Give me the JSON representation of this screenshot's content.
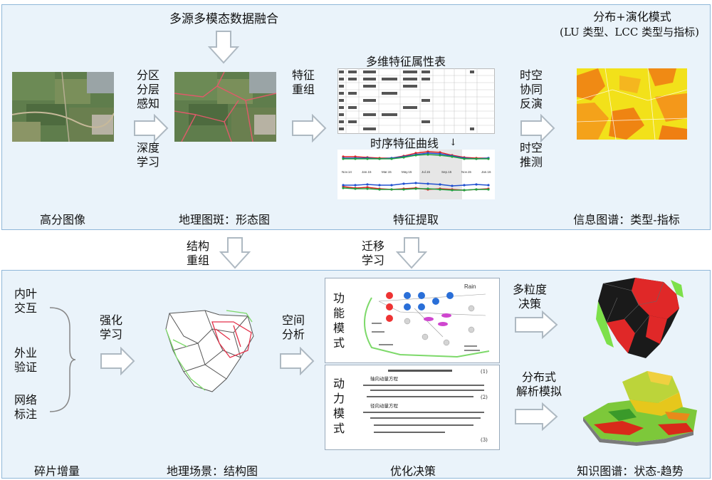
{
  "top": {
    "fusion_title": "多源多模态数据融合",
    "attr_table_title": "多维特征属性表",
    "curve_title": "时序特征曲线",
    "arrow1_upper": [
      "分区",
      "分层",
      "感知"
    ],
    "arrow1_lower": [
      "深度",
      "学习"
    ],
    "arrow2": [
      "特征",
      "重组"
    ],
    "arrow3_upper": [
      "时空",
      "协同",
      "反演"
    ],
    "arrow3_lower": [
      "时空",
      "推测"
    ],
    "right_title_line1": "分布+演化模式",
    "right_title_line2": "(LU 类型、LCC 类型与指标)",
    "captions": [
      "高分图像",
      "地理图斑：形态图",
      "特征提取",
      "信息图谱：类型-指标"
    ],
    "chart_x_labels": [
      "Nov.14",
      "Jan.15",
      "Mar.15",
      "May.15",
      "Jul.15",
      "Sep.15",
      "Nov.15",
      "Jan.16"
    ]
  },
  "middle": {
    "left_arrow": [
      "结构",
      "重组"
    ],
    "right_arrow": [
      "迁移",
      "学习"
    ]
  },
  "bottom": {
    "left_list": [
      [
        "内叶",
        "交互"
      ],
      [
        "外业",
        "验证"
      ],
      [
        "网络",
        "标注"
      ]
    ],
    "arrow_rl": [
      "强化",
      "学习"
    ],
    "arrow_spatial": [
      "空间",
      "分析"
    ],
    "func_label": [
      "功",
      "能",
      "模",
      "式"
    ],
    "dyn_label": [
      "动",
      "力",
      "模",
      "式"
    ],
    "arrow_multi": [
      "多粒度",
      "决策"
    ],
    "arrow_dist": [
      "分布式",
      "解析模拟"
    ],
    "captions": [
      "碎片增量",
      "地理场景：结构图",
      "优化决策",
      "知识图谱：状态-趋势"
    ],
    "diagram_title": "Rain",
    "equation_numbers": [
      "(1)",
      "(2)",
      "(3)"
    ],
    "equation_heading_1": "轴向动量方程",
    "equation_heading_2": "径向动量方程"
  },
  "colors": {
    "panel_border": "#8fb7d8",
    "panel_fill": "#eaf3fa",
    "arrow_fill": "#ffffff",
    "arrow_stroke": "#aeb9c2"
  }
}
